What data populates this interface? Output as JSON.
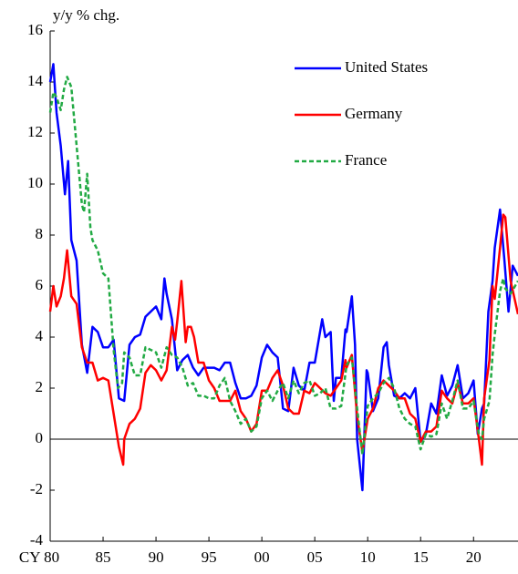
{
  "chart_data": {
    "type": "line",
    "y_label": "y/y % chg.",
    "ylim": [
      -4,
      16
    ],
    "yticks": [
      -4,
      -2,
      0,
      2,
      4,
      6,
      8,
      10,
      12,
      14,
      16
    ],
    "xlim": [
      1980,
      2024.2
    ],
    "xticks": [
      {
        "value": 1980,
        "label": "CY 80"
      },
      {
        "value": 1985,
        "label": "85"
      },
      {
        "value": 1990,
        "label": "90"
      },
      {
        "value": 1995,
        "label": "95"
      },
      {
        "value": 2000,
        "label": "00"
      },
      {
        "value": 2005,
        "label": "05"
      },
      {
        "value": 2010,
        "label": "10"
      },
      {
        "value": 2015,
        "label": "15"
      },
      {
        "value": 2020,
        "label": "20"
      }
    ],
    "zero_line": true,
    "series": [
      {
        "name": "United States",
        "color": "#0000ff",
        "dash": "solid",
        "x": [
          1980,
          1980.3,
          1980.6,
          1981,
          1981.4,
          1981.7,
          1982,
          1982.5,
          1983,
          1983.5,
          1984,
          1984.5,
          1985,
          1985.5,
          1986,
          1986.5,
          1987,
          1987.5,
          1988,
          1988.5,
          1989,
          1989.5,
          1990,
          1990.5,
          1990.8,
          1991,
          1991.5,
          1992,
          1992.5,
          1993,
          1993.5,
          1994,
          1994.5,
          1995,
          1995.5,
          1996,
          1996.5,
          1997,
          1997.5,
          1998,
          1998.5,
          1999,
          1999.5,
          2000,
          2000.5,
          2001,
          2001.5,
          2001.9,
          2002,
          2002.5,
          2003,
          2003.5,
          2004,
          2004.5,
          2005,
          2005.7,
          2006,
          2006.5,
          2006.8,
          2007,
          2007.5,
          2007.9,
          2008,
          2008.5,
          2008.8,
          2009,
          2009.5,
          2009.9,
          2010,
          2010.5,
          2011,
          2011.5,
          2011.8,
          2012,
          2012.5,
          2013,
          2013.5,
          2014,
          2014.5,
          2015,
          2015.5,
          2016,
          2016.5,
          2017,
          2017.5,
          2018,
          2018.5,
          2019,
          2019.5,
          2020,
          2020.4,
          2020.8,
          2021,
          2021.4,
          2021.8,
          2022,
          2022.5,
          2022.9,
          2023.3,
          2023.7,
          2024.2
        ],
        "values": [
          14.0,
          14.7,
          12.8,
          11.5,
          9.6,
          10.9,
          7.8,
          7.0,
          3.7,
          2.6,
          4.4,
          4.2,
          3.6,
          3.6,
          3.9,
          1.6,
          1.5,
          3.7,
          4.0,
          4.1,
          4.8,
          5.0,
          5.2,
          4.7,
          6.3,
          5.7,
          4.7,
          2.7,
          3.1,
          3.3,
          2.8,
          2.5,
          2.8,
          2.8,
          2.8,
          2.7,
          3.0,
          3.0,
          2.2,
          1.6,
          1.6,
          1.7,
          2.1,
          3.2,
          3.7,
          3.4,
          3.2,
          1.6,
          1.2,
          1.1,
          2.8,
          2.1,
          1.9,
          3.0,
          3.0,
          4.7,
          4.0,
          4.2,
          1.5,
          2.4,
          2.4,
          4.3,
          4.2,
          5.6,
          3.7,
          0.0,
          -2.0,
          2.7,
          2.6,
          1.1,
          1.6,
          3.6,
          3.8,
          2.9,
          1.7,
          1.6,
          1.8,
          1.6,
          2.0,
          -0.1,
          0.2,
          1.4,
          1.0,
          2.5,
          1.7,
          2.1,
          2.9,
          1.6,
          1.8,
          2.3,
          0.2,
          1.2,
          1.4,
          5.0,
          6.2,
          7.5,
          9.0,
          7.1,
          5.0,
          6.8,
          6.4
        ]
      },
      {
        "name": "Germany",
        "color": "#ff0000",
        "dash": "solid",
        "x": [
          1980,
          1980.3,
          1980.6,
          1981,
          1981.3,
          1981.6,
          1982,
          1982.5,
          1983,
          1983.5,
          1984,
          1984.5,
          1985,
          1985.5,
          1986,
          1986.5,
          1986.9,
          1987,
          1987.5,
          1988,
          1988.5,
          1989,
          1989.5,
          1990,
          1990.5,
          1991,
          1991.5,
          1991.8,
          1992,
          1992.4,
          1992.8,
          1993,
          1993.3,
          1993.6,
          1994,
          1994.5,
          1995,
          1995.5,
          1996,
          1996.5,
          1997,
          1997.5,
          1998,
          1998.5,
          1999,
          1999.5,
          2000,
          2000.5,
          2001,
          2001.5,
          2002,
          2002.5,
          2003,
          2003.5,
          2004,
          2004.5,
          2005,
          2005.5,
          2006,
          2006.5,
          2007,
          2007.5,
          2007.9,
          2008,
          2008.5,
          2009,
          2009.5,
          2010,
          2010.5,
          2011,
          2011.5,
          2012,
          2012.5,
          2013,
          2013.5,
          2014,
          2014.5,
          2015,
          2015.5,
          2016,
          2016.5,
          2017,
          2017.5,
          2018,
          2018.5,
          2019,
          2019.5,
          2020,
          2020.5,
          2020.8,
          2021,
          2021.5,
          2021.8,
          2022,
          2022.5,
          2022.8,
          2023,
          2023.5,
          2024.2
        ],
        "values": [
          5.0,
          6.0,
          5.2,
          5.6,
          6.3,
          7.4,
          5.6,
          5.3,
          3.6,
          3.0,
          3.0,
          2.3,
          2.4,
          2.3,
          1.0,
          -0.3,
          -1.0,
          0.0,
          0.6,
          0.8,
          1.2,
          2.6,
          2.9,
          2.7,
          2.3,
          2.7,
          4.4,
          3.9,
          4.6,
          6.2,
          3.8,
          4.4,
          4.4,
          4.0,
          3.0,
          3.0,
          2.3,
          2.0,
          1.5,
          1.5,
          1.5,
          1.9,
          1.1,
          0.8,
          0.3,
          0.6,
          1.9,
          1.9,
          2.4,
          2.7,
          2.1,
          1.2,
          1.0,
          1.0,
          1.9,
          1.8,
          2.2,
          2.0,
          1.8,
          1.7,
          2.0,
          2.3,
          3.1,
          2.8,
          3.3,
          0.9,
          -0.5,
          0.8,
          1.2,
          2.0,
          2.3,
          2.1,
          1.9,
          1.6,
          1.6,
          1.0,
          0.8,
          -0.1,
          0.3,
          0.3,
          0.5,
          1.9,
          1.6,
          1.4,
          2.2,
          1.4,
          1.4,
          1.6,
          0.0,
          -1.0,
          1.6,
          3.1,
          6.0,
          5.5,
          7.5,
          8.8,
          8.7,
          6.2,
          4.9
        ]
      },
      {
        "name": "France",
        "color": "#22aa44",
        "dash": "dashed",
        "x": [
          1980,
          1980.3,
          1980.6,
          1981,
          1981.3,
          1981.6,
          1982,
          1982.5,
          1983,
          1983.2,
          1983.5,
          1983.8,
          1984,
          1984.5,
          1985,
          1985.5,
          1986,
          1986.4,
          1986.8,
          1987,
          1987.5,
          1988,
          1988.5,
          1989,
          1989.5,
          1990,
          1990.5,
          1991,
          1991.5,
          1992,
          1992.5,
          1993,
          1993.5,
          1994,
          1994.5,
          1995,
          1995.5,
          1996,
          1996.5,
          1997,
          1997.5,
          1998,
          1998.5,
          1999,
          1999.5,
          2000,
          2000.5,
          2001,
          2001.5,
          2002,
          2002.5,
          2003,
          2003.5,
          2004,
          2004.5,
          2005,
          2005.5,
          2006,
          2006.5,
          2007,
          2007.5,
          2008,
          2008.5,
          2009,
          2009.5,
          2010,
          2010.5,
          2011,
          2011.5,
          2012,
          2012.5,
          2013,
          2013.5,
          2014,
          2014.5,
          2015,
          2015.5,
          2016,
          2016.5,
          2017,
          2017.5,
          2018,
          2018.5,
          2019,
          2019.5,
          2020,
          2020.5,
          2020.8,
          2021,
          2021.5,
          2021.8,
          2022,
          2022.5,
          2022.8,
          2023,
          2023.5,
          2024.2
        ],
        "values": [
          12.8,
          13.6,
          13.4,
          12.9,
          13.7,
          14.2,
          13.8,
          11.5,
          9.2,
          8.9,
          10.4,
          8.3,
          7.8,
          7.4,
          6.5,
          6.3,
          3.5,
          2.0,
          2.2,
          3.4,
          3.2,
          2.5,
          2.5,
          3.6,
          3.5,
          3.4,
          2.8,
          3.6,
          3.3,
          3.2,
          2.8,
          2.1,
          2.2,
          1.7,
          1.7,
          1.6,
          1.6,
          2.1,
          2.4,
          1.5,
          1.1,
          0.6,
          0.8,
          0.3,
          0.5,
          1.6,
          1.9,
          1.5,
          1.9,
          2.2,
          1.6,
          2.3,
          1.8,
          2.2,
          2.3,
          1.7,
          1.8,
          2.0,
          1.2,
          1.2,
          1.3,
          2.9,
          3.2,
          1.2,
          -0.6,
          1.3,
          1.6,
          1.8,
          2.2,
          2.4,
          2.0,
          1.2,
          0.8,
          0.6,
          0.5,
          -0.4,
          0.2,
          0.1,
          0.2,
          1.4,
          0.8,
          1.5,
          2.3,
          1.2,
          1.2,
          1.5,
          0.2,
          0.0,
          0.8,
          1.5,
          3.3,
          4.1,
          5.8,
          6.3,
          5.9,
          5.7,
          6.2
        ]
      }
    ]
  }
}
